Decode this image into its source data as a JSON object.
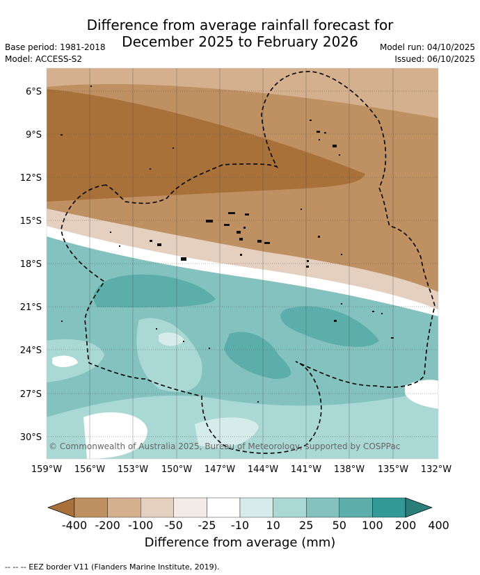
{
  "title": {
    "line1": "Difference from average rainfall forecast for",
    "line2": "December 2025 to February 2026"
  },
  "meta": {
    "base_period": "Base period: 1981-2018",
    "model": "Model: ACCESS-S2",
    "model_run": "Model run: 04/10/2025",
    "issued": "Issued: 06/10/2025"
  },
  "axes": {
    "lat_labels": [
      "6°S",
      "9°S",
      "12°S",
      "15°S",
      "18°S",
      "21°S",
      "24°S",
      "27°S",
      "30°S"
    ],
    "lon_labels": [
      "159°W",
      "156°W",
      "153°W",
      "150°W",
      "147°W",
      "144°W",
      "141°W",
      "138°W",
      "135°W",
      "132°W"
    ]
  },
  "copyright": "© Commonwealth of Australia 2025, Bureau of Meteorology, supported by COSPPac",
  "colorbar": {
    "labels": [
      "-400",
      "-200",
      "-100",
      "-50",
      "-25",
      "-10",
      "10",
      "25",
      "50",
      "100",
      "200",
      "400"
    ],
    "colors": [
      "#a9713a",
      "#bf9062",
      "#d4b08e",
      "#e5d0bf",
      "#f2ebe7",
      "#ffffff",
      "#d5ecea",
      "#aad8d5",
      "#84c2c0",
      "#5caeaa",
      "#339995",
      "#2a7f7b"
    ],
    "title": "Difference from average (mm)"
  },
  "footnote": "--  --  -- EEZ border V11 (Flanders Marine Institute, 2019)."
}
